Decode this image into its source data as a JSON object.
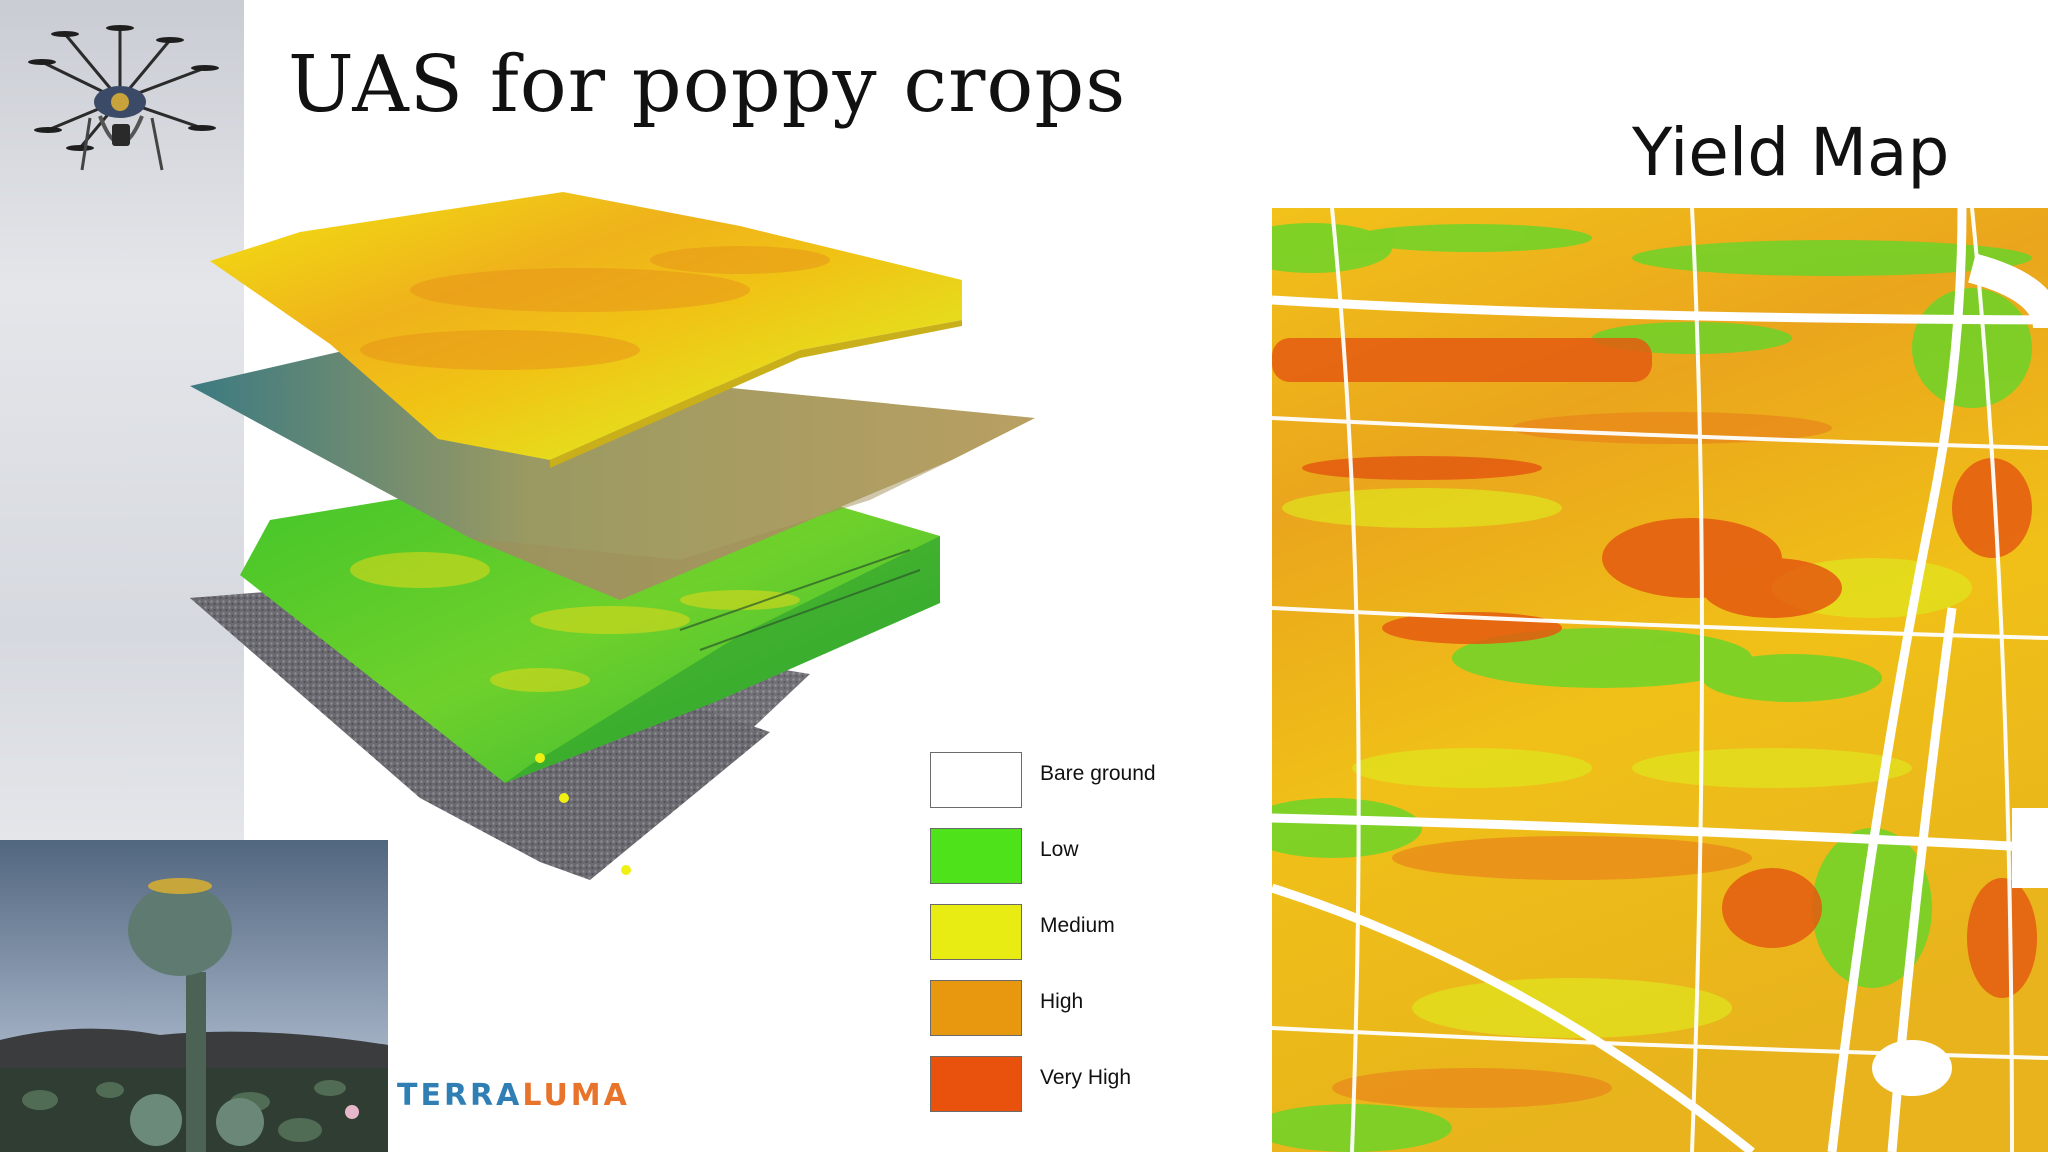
{
  "slide": {
    "title": "UAS for poppy crops",
    "yield_title": "Yield Map"
  },
  "logo": {
    "part1": "TERRA",
    "part2": "LUMA",
    "color1": "#2f7fb5",
    "color2": "#e8732a"
  },
  "legend": {
    "items": [
      {
        "label": "Bare ground",
        "color": "#ffffff"
      },
      {
        "label": "Low",
        "color": "#4ee21a"
      },
      {
        "label": "Medium",
        "color": "#e8ec12"
      },
      {
        "label": "High",
        "color": "#e8980f"
      },
      {
        "label": "Very High",
        "color": "#e8520c"
      }
    ]
  },
  "images": {
    "drone": "octocopter drone photo",
    "layers": "stacked 3D field data layers",
    "poppy": "poppy seed head field photo",
    "yield_map": "poppy yield map raster"
  }
}
